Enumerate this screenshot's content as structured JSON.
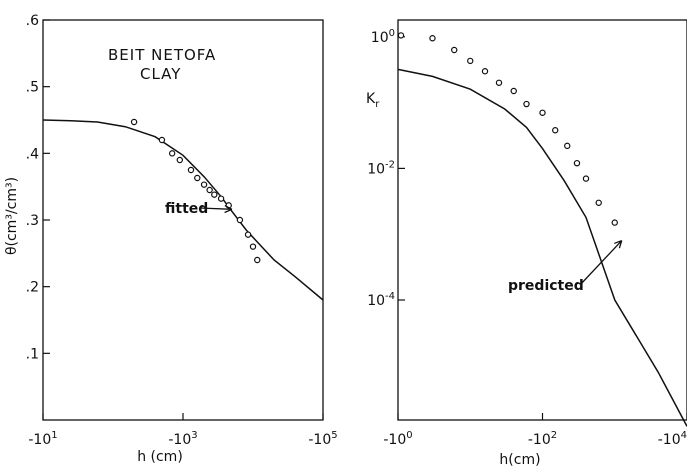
{
  "chart_data": [
    {
      "type": "scatter",
      "title_lines": [
        "BEIT  NETOFA",
        "CLAY"
      ],
      "xlabel": "h (cm)",
      "ylabel": "θ(cm³/cm³)",
      "x_scale": "log",
      "x_ticks": [
        {
          "value": 10,
          "label": "-10",
          "exp": "1"
        },
        {
          "value": 1000,
          "label": "-10",
          "exp": "3"
        },
        {
          "value": 100000,
          "label": "-10",
          "exp": "5"
        }
      ],
      "xlim": [
        10,
        100000
      ],
      "y_ticks": [
        {
          "value": 0.1,
          "label": ".1"
        },
        {
          "value": 0.2,
          "label": ".2"
        },
        {
          "value": 0.3,
          "label": ".3"
        },
        {
          "value": 0.4,
          "label": ".4"
        },
        {
          "value": 0.5,
          "label": ".5"
        },
        {
          "value": 0.6,
          "label": ".6"
        }
      ],
      "ylim": [
        0.0,
        0.6
      ],
      "series": [
        {
          "kind": "line",
          "points": [
            [
              10,
              0.45
            ],
            [
              25,
              0.449
            ],
            [
              60,
              0.447
            ],
            [
              150,
              0.44
            ],
            [
              400,
              0.425
            ],
            [
              1000,
              0.397
            ],
            [
              2000,
              0.365
            ],
            [
              3500,
              0.335
            ],
            [
              5000,
              0.313
            ],
            [
              8000,
              0.285
            ],
            [
              12000,
              0.265
            ],
            [
              20000,
              0.24
            ],
            [
              40000,
              0.215
            ],
            [
              100000,
              0.18
            ]
          ]
        },
        {
          "kind": "scatter",
          "points": [
            [
              200,
              0.447
            ],
            [
              500,
              0.42
            ],
            [
              700,
              0.4
            ],
            [
              900,
              0.39
            ],
            [
              1300,
              0.375
            ],
            [
              1600,
              0.363
            ],
            [
              2000,
              0.353
            ],
            [
              2400,
              0.345
            ],
            [
              2800,
              0.338
            ],
            [
              3500,
              0.332
            ],
            [
              4500,
              0.322
            ],
            [
              6500,
              0.3
            ],
            [
              8500,
              0.278
            ],
            [
              10000,
              0.26
            ],
            [
              11500,
              0.24
            ]
          ]
        }
      ],
      "annotations": [
        {
          "text": "fitted",
          "target": [
            5000,
            0.316
          ]
        }
      ]
    },
    {
      "type": "scatter",
      "ylabel_main": "K",
      "ylabel_sub": "r",
      "xlabel": "h(cm)",
      "x_scale": "log",
      "y_scale": "log",
      "x_ticks": [
        {
          "value": 1,
          "label": "-10",
          "exp": "0"
        },
        {
          "value": 100,
          "label": "-10",
          "exp": "2"
        },
        {
          "value": 10000,
          "label": "-10",
          "exp": "4"
        }
      ],
      "xlim": [
        1,
        10000
      ],
      "y_ticks": [
        {
          "value": 1,
          "label": "10",
          "exp": "0"
        },
        {
          "value": 0.01,
          "label": "10",
          "exp": "-2"
        },
        {
          "value": 0.0001,
          "label": "10",
          "exp": "-4"
        }
      ],
      "ylim": [
        1.5e-06,
        1.8
      ],
      "series": [
        {
          "kind": "line",
          "points": [
            [
              1,
              0.32
            ],
            [
              3,
              0.25
            ],
            [
              10,
              0.16
            ],
            [
              30,
              0.08
            ],
            [
              60,
              0.042
            ],
            [
              100,
              0.02
            ],
            [
              200,
              0.0065
            ],
            [
              400,
              0.0018
            ],
            [
              1000,
              0.0001
            ],
            [
              4000,
              8e-06
            ],
            [
              10000,
              1.2e-06
            ]
          ]
        },
        {
          "kind": "scatter",
          "points": [
            [
              1.1,
              1.05
            ],
            [
              3,
              0.95
            ],
            [
              6,
              0.63
            ],
            [
              10,
              0.43
            ],
            [
              16,
              0.3
            ],
            [
              25,
              0.2
            ],
            [
              40,
              0.15
            ],
            [
              60,
              0.095
            ],
            [
              100,
              0.07
            ],
            [
              150,
              0.038
            ],
            [
              220,
              0.022
            ],
            [
              300,
              0.012
            ],
            [
              400,
              0.007
            ],
            [
              600,
              0.003
            ],
            [
              1000,
              0.0015
            ]
          ]
        }
      ],
      "annotations": [
        {
          "text": "predicted",
          "target": [
            1250,
            0.0008
          ]
        }
      ]
    }
  ]
}
